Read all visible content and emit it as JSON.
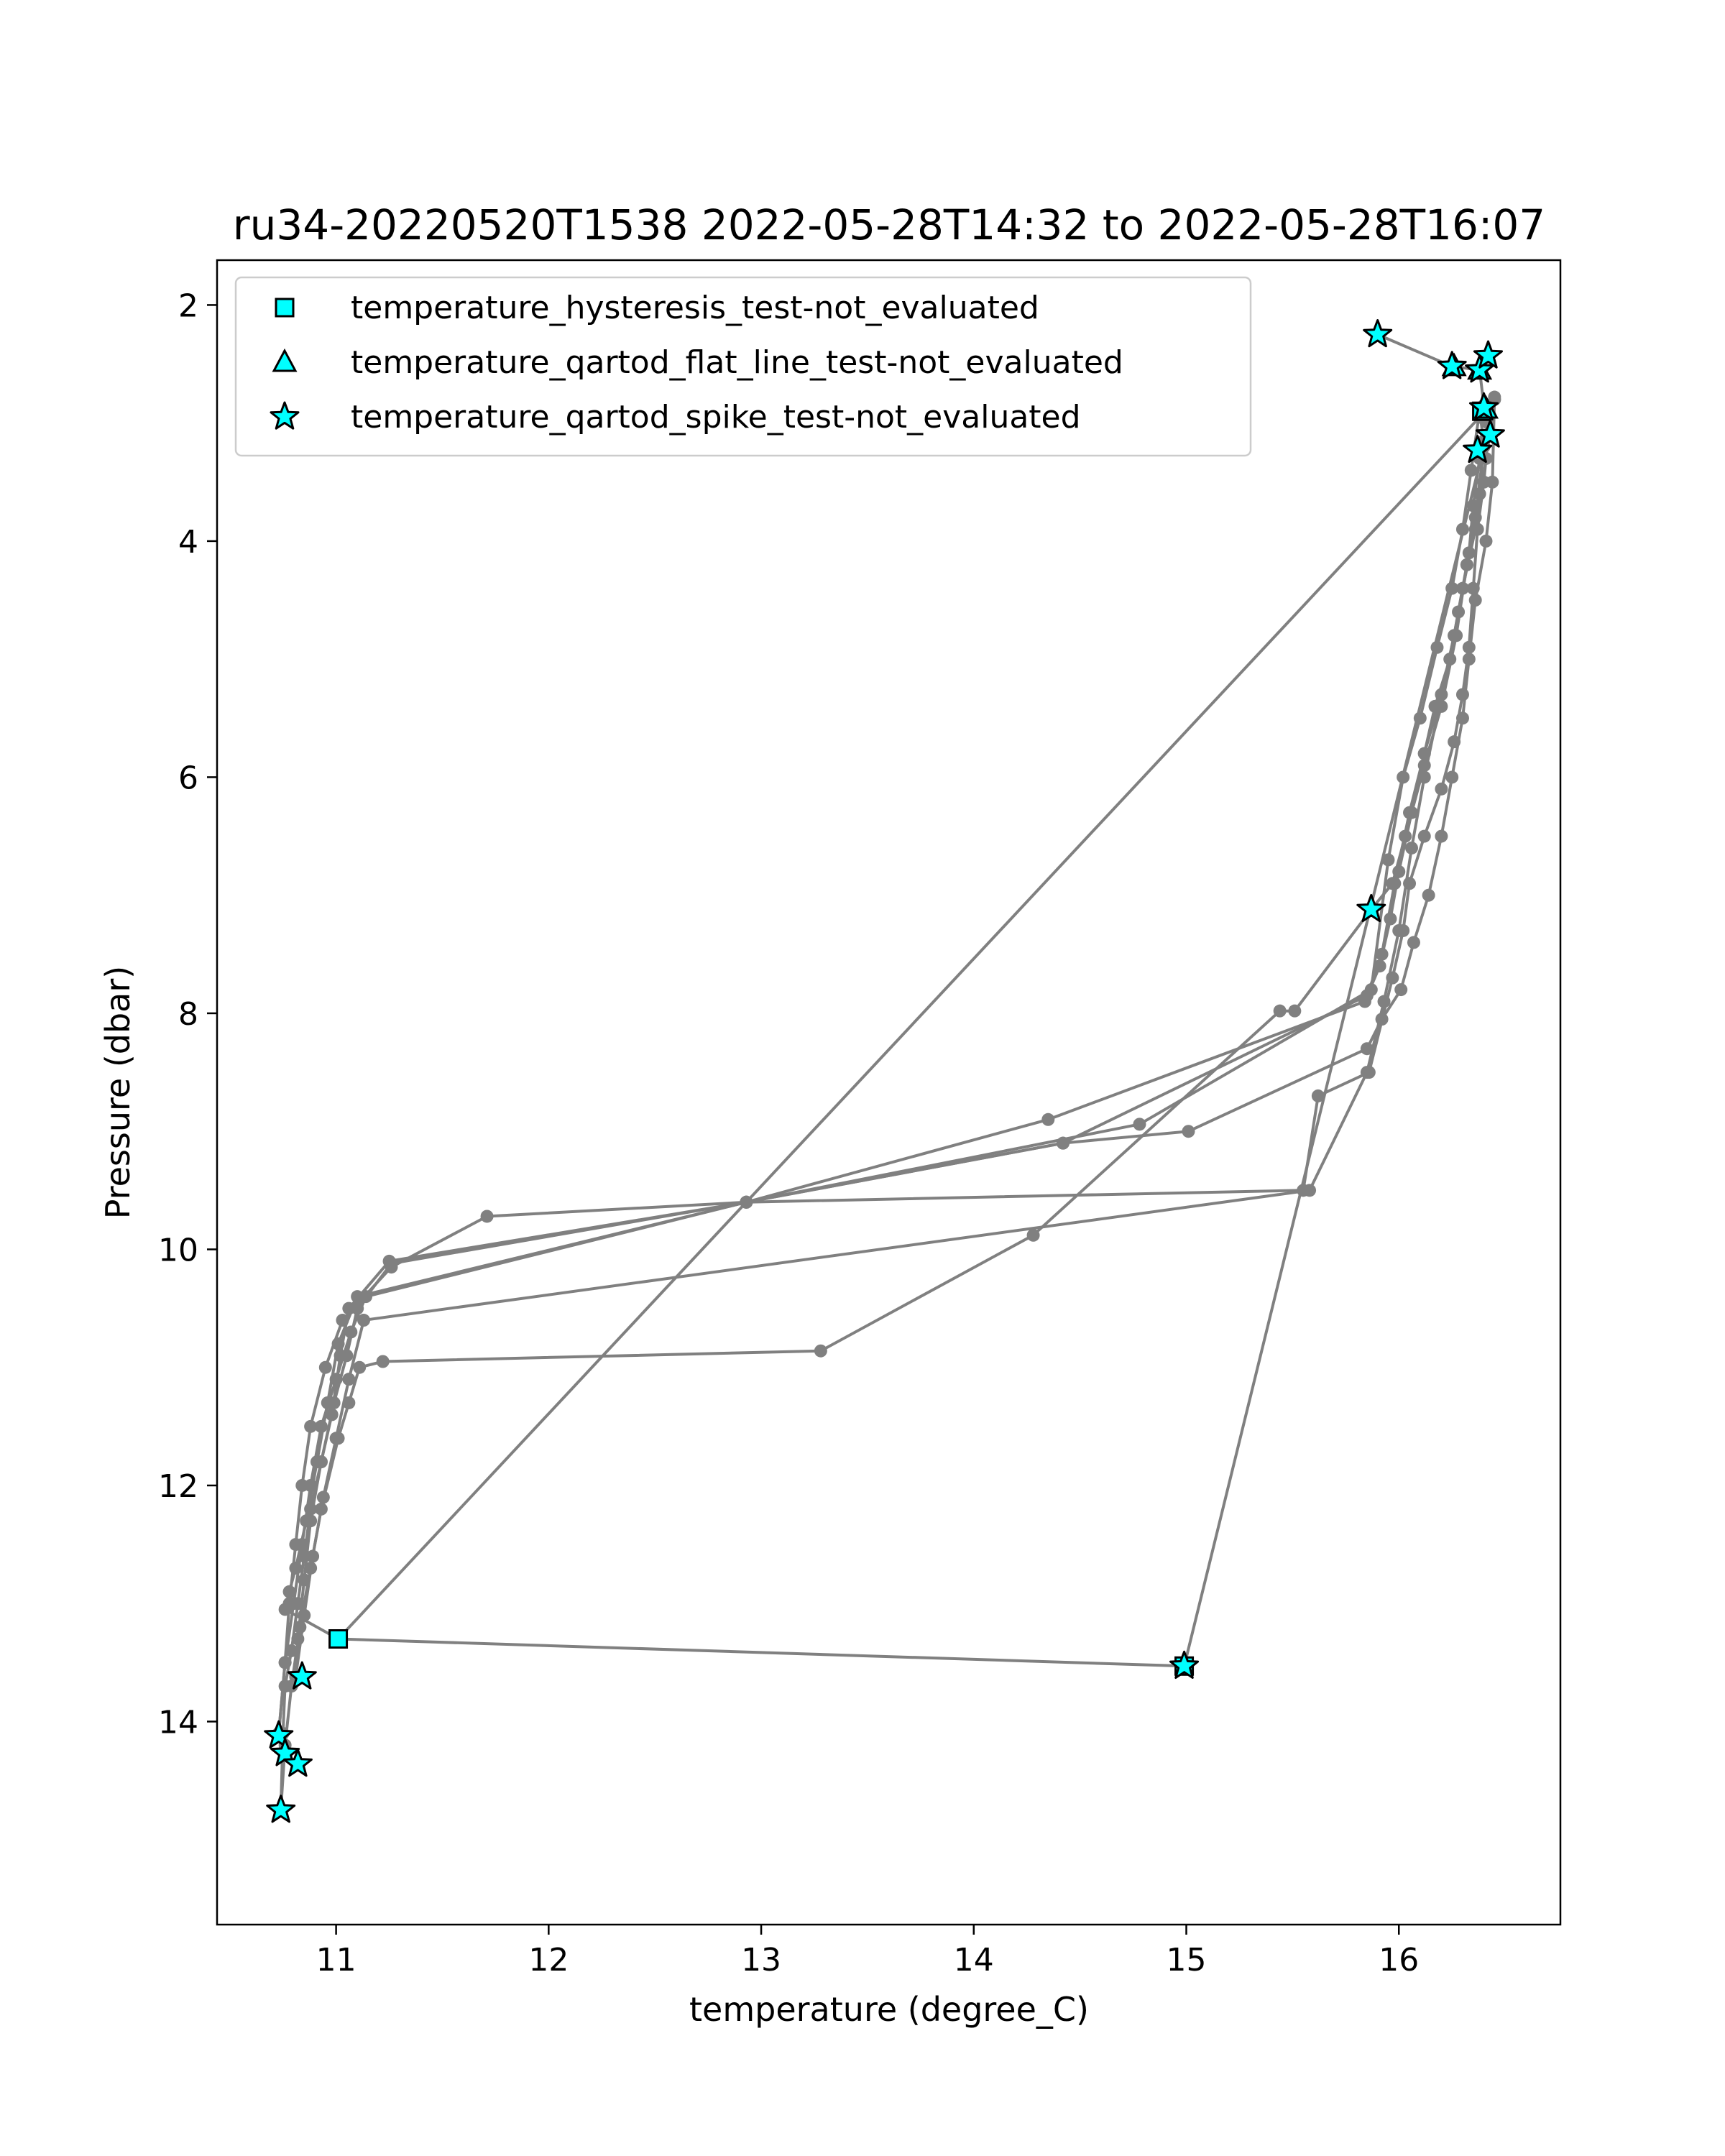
{
  "chart_data": {
    "type": "line",
    "title": "ru34-20220520T1538 2022-05-28T14:32 to 2022-05-28T16:07",
    "xlabel": "temperature (degree_C)",
    "ylabel": "Pressure (dbar)",
    "xlim": [
      10.44,
      16.76
    ],
    "ylim": [
      15.72,
      1.62
    ],
    "y_inverted": true,
    "xticks": [
      11,
      12,
      13,
      14,
      15,
      16
    ],
    "yticks": [
      2,
      4,
      6,
      8,
      10,
      12,
      14
    ],
    "grid": false,
    "legend_position": "top-left",
    "colors": {
      "line": "#808080",
      "marker_fill": "#00ffff",
      "marker_edge": "#000000"
    },
    "legend": [
      {
        "label": "temperature_hysteresis_test-not_evaluated",
        "marker": "square"
      },
      {
        "label": "temperature_qartod_flat_line_test-not_evaluated",
        "marker": "triangle"
      },
      {
        "label": "temperature_qartod_spike_test-not_evaluated",
        "marker": "star"
      }
    ],
    "series": [
      {
        "x": [
          15.9,
          16.25,
          16.38,
          16.4,
          16.42,
          16.4,
          16.37,
          16.35,
          16.33,
          16.3,
          16.26,
          16.2,
          16.12,
          16.05,
          16.02,
          15.97,
          15.86,
          15.62,
          15.55,
          12.93,
          11.25,
          11.06,
          11.02,
          10.98,
          10.93,
          10.88,
          10.85,
          10.82,
          10.79,
          10.76,
          10.75,
          10.74
        ],
        "y": [
          2.25,
          2.52,
          2.55,
          2.85,
          3.1,
          3.5,
          3.9,
          4.4,
          4.9,
          5.3,
          5.7,
          6.1,
          6.5,
          6.9,
          7.3,
          7.7,
          8.5,
          8.7,
          9.5,
          9.6,
          10.1,
          10.5,
          10.9,
          11.4,
          11.8,
          12.2,
          12.6,
          13.0,
          13.4,
          13.7,
          14.1,
          14.75
        ]
      },
      {
        "x": [
          10.74,
          10.76,
          10.79,
          10.83,
          10.88,
          10.93,
          11.01,
          11.06,
          11.11,
          11.22,
          13.28,
          14.28,
          15.44,
          15.51,
          15.87,
          15.97,
          16.03,
          16.12,
          16.2,
          16.27,
          16.32,
          16.36,
          16.4,
          16.45
        ],
        "y": [
          14.75,
          14.2,
          13.7,
          13.2,
          12.7,
          12.2,
          11.6,
          11.3,
          11.0,
          10.95,
          10.86,
          9.88,
          7.98,
          7.98,
          7.12,
          6.9,
          6.5,
          5.9,
          5.4,
          4.8,
          4.2,
          3.8,
          3.2,
          2.8
        ]
      },
      {
        "x": [
          16.45,
          16.42,
          16.38,
          16.35,
          16.33,
          16.28,
          16.24,
          16.17,
          16.12,
          16.05,
          15.98,
          15.92,
          15.85,
          14.42,
          12.93,
          11.71,
          11.26,
          11.03,
          10.95,
          10.88,
          10.84,
          10.81,
          10.78,
          10.76,
          10.73
        ],
        "y": [
          2.8,
          3.0,
          3.3,
          3.7,
          4.1,
          4.6,
          5.0,
          5.4,
          5.8,
          6.3,
          6.9,
          7.5,
          7.85,
          9.1,
          9.6,
          9.72,
          10.15,
          10.6,
          11.0,
          11.5,
          12.0,
          12.5,
          13.0,
          13.5,
          14.1
        ]
      },
      {
        "x": [
          10.73,
          10.76,
          10.8,
          10.84,
          10.88,
          10.93,
          11.0,
          11.07,
          11.14,
          12.93,
          14.35,
          15.84,
          15.91,
          15.96,
          16.0,
          16.06,
          16.12,
          16.2,
          16.26,
          16.3,
          16.36,
          16.41,
          16.38
        ],
        "y": [
          14.1,
          13.5,
          13.0,
          12.5,
          12.0,
          11.5,
          11.1,
          10.7,
          10.4,
          9.6,
          8.9,
          7.9,
          7.6,
          7.2,
          6.8,
          6.3,
          5.8,
          5.3,
          4.8,
          4.4,
          3.9,
          3.3,
          2.9
        ]
      },
      {
        "x": [
          16.38,
          16.34,
          16.3,
          16.25,
          16.18,
          16.1,
          16.02,
          15.95,
          15.87,
          14.78,
          12.93,
          11.1,
          11.01,
          10.96,
          10.91,
          10.86,
          10.81,
          10.78,
          10.76,
          11.01,
          14.99
        ],
        "y": [
          2.9,
          3.4,
          3.9,
          4.4,
          4.9,
          5.5,
          6.0,
          6.7,
          7.8,
          8.94,
          9.6,
          10.4,
          10.8,
          11.3,
          11.8,
          12.3,
          12.7,
          12.9,
          13.05,
          13.3,
          13.53
        ]
      },
      {
        "x": [
          11.01,
          16.38
        ],
        "y": [
          13.3,
          2.95
        ]
      },
      {
        "x": [
          14.99,
          16.4,
          16.45,
          16.44,
          16.41,
          16.36,
          16.33,
          16.3,
          16.25,
          16.2,
          16.14,
          16.07,
          16.01,
          15.92,
          15.85,
          15.01,
          14.42,
          12.93,
          11.26,
          11.1,
          11.05,
          10.99,
          10.93,
          10.88,
          10.85,
          10.82,
          10.81
        ],
        "y": [
          13.53,
          3.2,
          2.78,
          3.5,
          4.0,
          4.5,
          5.0,
          5.5,
          6.0,
          6.5,
          7.0,
          7.4,
          7.8,
          8.05,
          8.3,
          9.0,
          9.1,
          9.6,
          10.12,
          10.5,
          10.9,
          11.3,
          11.8,
          12.3,
          12.8,
          13.3,
          13.62
        ]
      },
      {
        "x": [
          10.81,
          10.85,
          10.89,
          10.94,
          11.0,
          11.06,
          11.13,
          15.58,
          15.85,
          15.93,
          16.0,
          16.06,
          16.12,
          16.19,
          16.26,
          16.32,
          16.38,
          16.4
        ],
        "y": [
          13.62,
          13.1,
          12.6,
          12.1,
          11.6,
          11.1,
          10.6,
          9.5,
          8.5,
          7.9,
          7.3,
          6.6,
          6.0,
          5.4,
          4.8,
          4.2,
          3.6,
          3.15
        ]
      }
    ],
    "markers": {
      "hysteresis": [
        {
          "x": 11.01,
          "y": 13.3
        },
        {
          "x": 16.39,
          "y": 2.9
        },
        {
          "x": 14.99,
          "y": 13.53
        }
      ],
      "flat_line": [
        {
          "x": 16.26,
          "y": 2.52
        },
        {
          "x": 16.38,
          "y": 2.55
        },
        {
          "x": 16.41,
          "y": 2.88
        }
      ],
      "spike": [
        {
          "x": 15.9,
          "y": 2.25
        },
        {
          "x": 16.25,
          "y": 2.52
        },
        {
          "x": 16.38,
          "y": 2.55
        },
        {
          "x": 16.42,
          "y": 2.43
        },
        {
          "x": 16.4,
          "y": 2.87
        },
        {
          "x": 16.43,
          "y": 3.1
        },
        {
          "x": 16.37,
          "y": 3.23
        },
        {
          "x": 15.87,
          "y": 7.12
        },
        {
          "x": 14.99,
          "y": 13.53
        },
        {
          "x": 10.84,
          "y": 13.62
        },
        {
          "x": 10.73,
          "y": 14.12
        },
        {
          "x": 10.76,
          "y": 14.27
        },
        {
          "x": 10.82,
          "y": 14.36
        },
        {
          "x": 10.74,
          "y": 14.75
        }
      ]
    }
  }
}
